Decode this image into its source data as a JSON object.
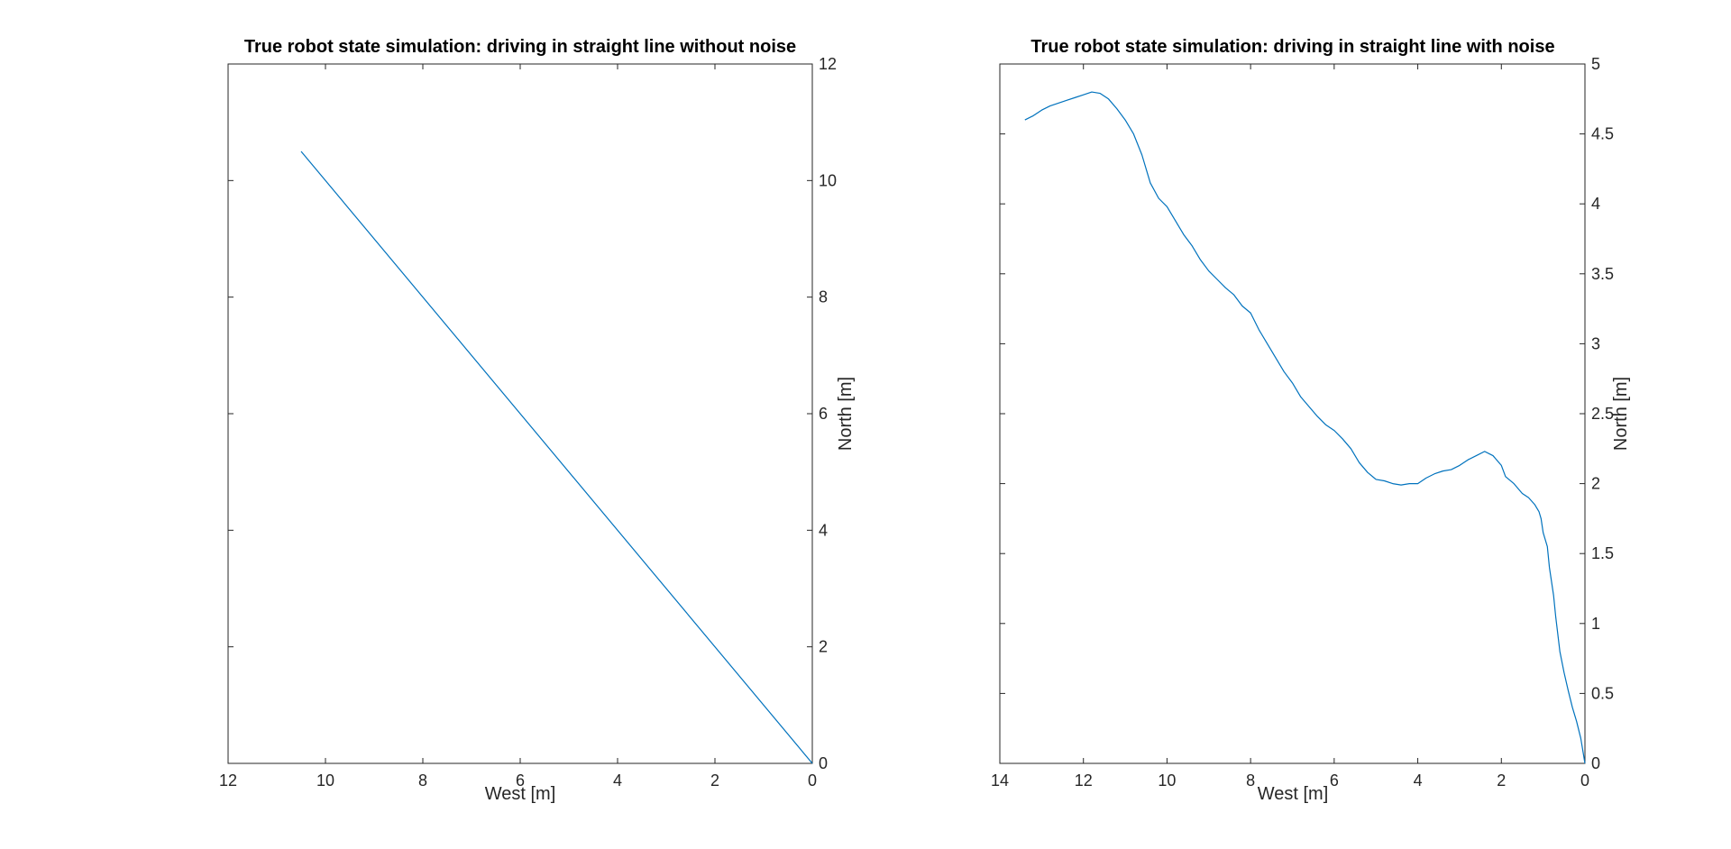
{
  "chart_data": [
    {
      "type": "line",
      "title": "True robot state simulation: driving in straight line without noise",
      "xlabel": "West [m]",
      "ylabel": "North [m]",
      "xlim": [
        12,
        0
      ],
      "ylim": [
        0,
        12
      ],
      "x_reversed": true,
      "y_axis_location": "right",
      "grid": false,
      "legend": "none",
      "xticks": [
        12,
        10,
        8,
        6,
        4,
        2,
        0
      ],
      "xtick_labels": [
        "12",
        "10",
        "8",
        "6",
        "4",
        "2",
        "0"
      ],
      "yticks": [
        0,
        2,
        4,
        6,
        8,
        10,
        12
      ],
      "ytick_labels": [
        "0",
        "2",
        "4",
        "6",
        "8",
        "10",
        "12"
      ],
      "series": [
        {
          "color": "#0072bd",
          "x": [
            0,
            10.5
          ],
          "y": [
            0,
            10.5
          ]
        }
      ]
    },
    {
      "type": "line",
      "title": "True robot state simulation: driving in straight line with noise",
      "xlabel": "West [m]",
      "ylabel": "North [m]",
      "xlim": [
        14,
        0
      ],
      "ylim": [
        0,
        5
      ],
      "x_reversed": true,
      "y_axis_location": "right",
      "grid": false,
      "legend": "none",
      "xticks": [
        14,
        12,
        10,
        8,
        6,
        4,
        2,
        0
      ],
      "xtick_labels": [
        "14",
        "12",
        "10",
        "8",
        "6",
        "4",
        "2",
        "0"
      ],
      "yticks": [
        0,
        0.5,
        1,
        1.5,
        2,
        2.5,
        3,
        3.5,
        4,
        4.5,
        5
      ],
      "ytick_labels": [
        "0",
        "0.5",
        "1",
        "1.5",
        "2",
        "2.5",
        "3",
        "3.5",
        "4",
        "4.5",
        "5"
      ],
      "series": [
        {
          "color": "#0072bd",
          "x": [
            0,
            0.1,
            0.2,
            0.3,
            0.4,
            0.5,
            0.6,
            0.7,
            0.75,
            0.85,
            0.9,
            1.0,
            1.05,
            1.1,
            1.2,
            1.35,
            1.5,
            1.7,
            1.9,
            2.0,
            2.2,
            2.4,
            2.6,
            2.8,
            3.0,
            3.2,
            3.4,
            3.6,
            3.8,
            4.0,
            4.2,
            4.4,
            4.6,
            4.8,
            5.0,
            5.2,
            5.4,
            5.6,
            5.8,
            6.0,
            6.2,
            6.4,
            6.6,
            6.8,
            7.0,
            7.2,
            7.4,
            7.6,
            7.8,
            8.0,
            8.2,
            8.4,
            8.6,
            8.8,
            9.0,
            9.2,
            9.4,
            9.6,
            9.8,
            10.0,
            10.2,
            10.4,
            10.6,
            10.8,
            11.0,
            11.2,
            11.4,
            11.6,
            11.8,
            12.0,
            12.2,
            12.4,
            12.6,
            12.8,
            13.0,
            13.2,
            13.4
          ],
          "y": [
            0,
            0.18,
            0.3,
            0.4,
            0.52,
            0.65,
            0.8,
            1.05,
            1.2,
            1.4,
            1.55,
            1.65,
            1.75,
            1.8,
            1.85,
            1.9,
            1.93,
            2.0,
            2.05,
            2.13,
            2.2,
            2.23,
            2.2,
            2.17,
            2.13,
            2.1,
            2.09,
            2.07,
            2.04,
            2.0,
            2.0,
            1.99,
            2.0,
            2.02,
            2.03,
            2.08,
            2.15,
            2.25,
            2.32,
            2.38,
            2.42,
            2.48,
            2.55,
            2.62,
            2.72,
            2.8,
            2.9,
            3.0,
            3.1,
            3.22,
            3.27,
            3.35,
            3.4,
            3.46,
            3.52,
            3.6,
            3.7,
            3.78,
            3.88,
            3.98,
            4.04,
            4.15,
            4.35,
            4.5,
            4.6,
            4.68,
            4.75,
            4.79,
            4.8,
            4.78,
            4.76,
            4.74,
            4.72,
            4.7,
            4.67,
            4.63,
            4.6
          ]
        }
      ]
    }
  ]
}
